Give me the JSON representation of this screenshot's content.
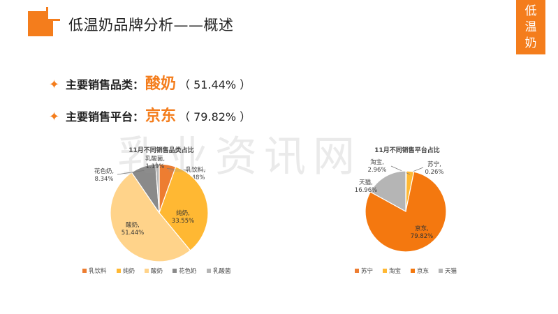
{
  "header": {
    "title": "低温奶品牌分析——概述",
    "corner_tag": [
      "低",
      "温",
      "奶"
    ]
  },
  "highlights": [
    {
      "label": "主要销售品类：",
      "value": "酸奶",
      "pct": "（ 51.44% ）"
    },
    {
      "label": "主要销售平台：",
      "value": "京东",
      "pct": "（ 79.82% ）"
    }
  ],
  "watermark": "乳业资讯网",
  "colors": {
    "accent": "#f47d1c",
    "c_ruyinliao": "#ed7d31",
    "c_chunnai": "#ffb833",
    "c_suannai": "#ffd38a",
    "c_huase": "#8a8a8a",
    "c_rusuanjun": "#b5b5b5",
    "c_jingdong": "#f4780f"
  },
  "chart_data": [
    {
      "type": "pie",
      "title": "11月不同销售品类占比",
      "slices": [
        {
          "name": "乳饮料",
          "value": 5.48,
          "label": "乳饮料,\n5.48%",
          "color": "#ed7d31"
        },
        {
          "name": "纯奶",
          "value": 33.55,
          "label": "纯奶,\n33.55%",
          "color": "#ffb833"
        },
        {
          "name": "酸奶",
          "value": 51.44,
          "label": "酸奶,\n51.44%",
          "color": "#ffd38a"
        },
        {
          "name": "花色奶",
          "value": 8.34,
          "label": "花色奶,\n8.34%",
          "color": "#8a8a8a"
        },
        {
          "name": "乳酸菌",
          "value": 1.19,
          "label": "乳酸菌,\n1.19%",
          "color": "#b5b5b5"
        }
      ],
      "legend": [
        "乳饮料",
        "纯奶",
        "酸奶",
        "花色奶",
        "乳酸菌"
      ],
      "legend_position": "bottom"
    },
    {
      "type": "pie",
      "title": "11月不同销售平台占比",
      "slices": [
        {
          "name": "苏宁",
          "value": 0.26,
          "label": "苏宁,\n0.26%",
          "color": "#ed7d31"
        },
        {
          "name": "淘宝",
          "value": 2.96,
          "label": "淘宝,\n2.96%",
          "color": "#ffb833"
        },
        {
          "name": "京东",
          "value": 79.82,
          "label": "京东,\n79.82%",
          "color": "#f4780f"
        },
        {
          "name": "天猫",
          "value": 16.96,
          "label": "天猫,\n16.96%",
          "color": "#b5b5b5"
        }
      ],
      "legend": [
        "苏宁",
        "淘宝",
        "京东",
        "天猫"
      ],
      "legend_position": "bottom"
    }
  ]
}
